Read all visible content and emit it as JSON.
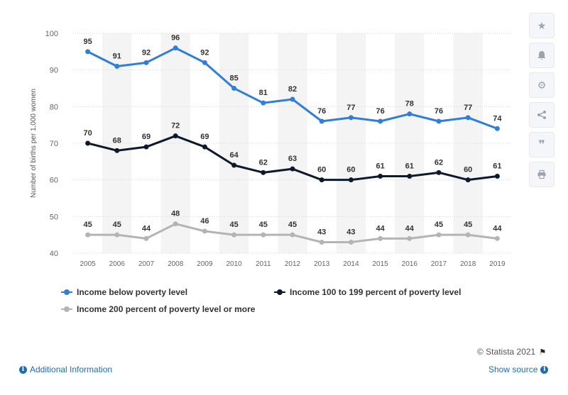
{
  "chart_data": {
    "type": "line",
    "categories": [
      "2005",
      "2006",
      "2007",
      "2008",
      "2009",
      "2010",
      "2011",
      "2012",
      "2013",
      "2014",
      "2015",
      "2016",
      "2017",
      "2018",
      "2019"
    ],
    "ylabel": "Number of births per 1,000 women",
    "ylim": [
      40,
      100
    ],
    "yticks": [
      40,
      50,
      60,
      70,
      80,
      90,
      100
    ],
    "grid": true,
    "legend_position": "bottom",
    "series": [
      {
        "name": "Income below poverty level",
        "color": "#2f7ed8",
        "values": [
          95,
          91,
          92,
          96,
          92,
          85,
          81,
          82,
          76,
          77,
          76,
          78,
          76,
          77,
          74
        ]
      },
      {
        "name": "Income 100 to 199 percent of poverty level",
        "color": "#0d1a2b",
        "values": [
          70,
          68,
          69,
          72,
          69,
          64,
          62,
          63,
          60,
          60,
          61,
          61,
          62,
          60,
          61
        ]
      },
      {
        "name": "Income 200 percent of poverty level or more",
        "color": "#b4b4b4",
        "values": [
          45,
          45,
          44,
          48,
          46,
          45,
          45,
          45,
          43,
          43,
          44,
          44,
          45,
          45,
          44
        ]
      }
    ]
  },
  "toolbar": {
    "star_icon": "star-icon",
    "bell_icon": "bell-icon",
    "gear_icon": "gear-icon",
    "share_icon": "share-icon",
    "quote_icon": "quote-icon",
    "print_icon": "print-icon"
  },
  "footer": {
    "copyright": "© Statista 2021",
    "additional_info": "Additional Information",
    "show_source": "Show source"
  }
}
